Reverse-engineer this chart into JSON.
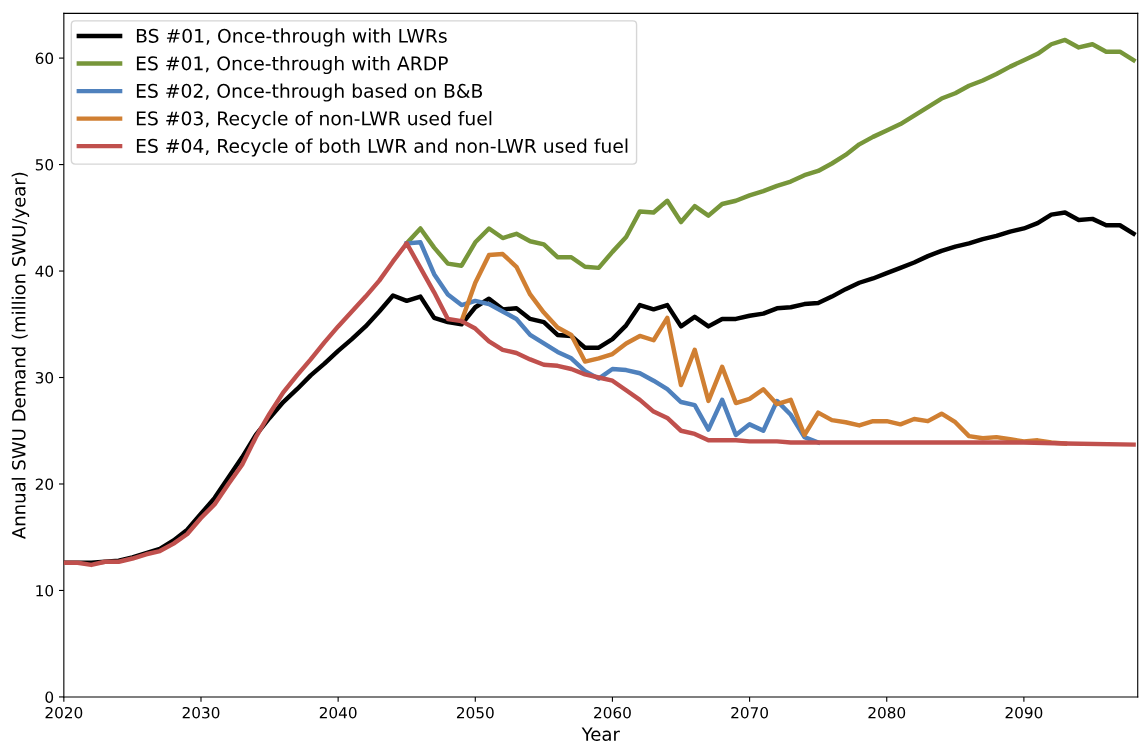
{
  "chart_data": {
    "type": "line",
    "xlabel": "Year",
    "ylabel": "Annual SWU Demand (million SWU/year)",
    "xlim": [
      2020,
      2098.3
    ],
    "xticks": [
      2020,
      2030,
      2040,
      2050,
      2060,
      2070,
      2080,
      2090
    ],
    "ylim": [
      0,
      64.2
    ],
    "yticks": [
      0,
      10,
      20,
      30,
      40,
      50,
      60
    ],
    "grid": false,
    "legend": "top left",
    "marker": "none",
    "line_style": "solid",
    "series": [
      {
        "name": "BS #01, Once-through with LWRs",
        "color": "#000000",
        "x": [
          2020,
          2021,
          2022,
          2023,
          2024,
          2025,
          2026,
          2027,
          2028,
          2029,
          2030,
          2031,
          2032,
          2033,
          2034,
          2035,
          2036,
          2037,
          2038,
          2039,
          2040,
          2041,
          2042,
          2043,
          2044,
          2045,
          2046,
          2047,
          2048,
          2049,
          2050,
          2051,
          2052,
          2053,
          2054,
          2055,
          2056,
          2057,
          2058,
          2059,
          2060,
          2061,
          2062,
          2063,
          2064,
          2065,
          2066,
          2067,
          2068,
          2069,
          2070,
          2071,
          2072,
          2073,
          2074,
          2075,
          2076,
          2077,
          2078,
          2079,
          2080,
          2081,
          2082,
          2083,
          2084,
          2085,
          2086,
          2087,
          2088,
          2089,
          2090,
          2091,
          2092,
          2093,
          2094,
          2095,
          2096,
          2097,
          2098
        ],
        "values": [
          12.6,
          12.6,
          12.6,
          12.7,
          12.8,
          13.1,
          13.5,
          13.9,
          14.7,
          15.7,
          17.2,
          18.7,
          20.6,
          22.5,
          24.6,
          26.2,
          27.7,
          28.9,
          30.2,
          31.3,
          32.5,
          33.6,
          34.8,
          36.2,
          37.7,
          37.2,
          37.6,
          35.6,
          35.2,
          35.0,
          36.6,
          37.4,
          36.4,
          36.5,
          35.5,
          35.2,
          34.0,
          33.9,
          32.8,
          32.8,
          33.6,
          34.9,
          36.8,
          36.4,
          36.8,
          34.8,
          35.7,
          34.8,
          35.5,
          35.5,
          35.8,
          36.0,
          36.5,
          36.6,
          36.9,
          37.0,
          37.6,
          38.3,
          38.9,
          39.3,
          39.8,
          40.3,
          40.8,
          41.4,
          41.9,
          42.3,
          42.6,
          43.0,
          43.3,
          43.7,
          44.0,
          44.5,
          45.3,
          45.5,
          44.8,
          44.9,
          44.3,
          44.3,
          43.5
        ]
      },
      {
        "name": "ES #01, Once-through with ARDP",
        "color": "#77963a",
        "x": [
          2045,
          2046,
          2047,
          2048,
          2049,
          2050,
          2051,
          2052,
          2053,
          2054,
          2055,
          2056,
          2057,
          2058,
          2059,
          2060,
          2061,
          2062,
          2063,
          2064,
          2065,
          2066,
          2067,
          2068,
          2069,
          2070,
          2071,
          2072,
          2073,
          2074,
          2075,
          2076,
          2077,
          2078,
          2079,
          2080,
          2081,
          2082,
          2083,
          2084,
          2085,
          2086,
          2087,
          2088,
          2089,
          2090,
          2091,
          2092,
          2093,
          2094,
          2095,
          2096,
          2097,
          2098
        ],
        "values": [
          42.6,
          44.0,
          42.2,
          40.7,
          40.5,
          42.7,
          44.0,
          43.1,
          43.5,
          42.8,
          42.5,
          41.3,
          41.3,
          40.4,
          40.3,
          41.8,
          43.2,
          45.6,
          45.5,
          46.6,
          44.6,
          46.1,
          45.2,
          46.3,
          46.6,
          47.1,
          47.5,
          48.0,
          48.4,
          49.0,
          49.4,
          50.1,
          50.9,
          51.9,
          52.6,
          53.2,
          53.8,
          54.6,
          55.4,
          56.2,
          56.7,
          57.4,
          57.9,
          58.5,
          59.2,
          59.8,
          60.4,
          61.3,
          61.7,
          61.0,
          61.3,
          60.6,
          60.6,
          59.8
        ]
      },
      {
        "name": "ES #02, Once-through based on B&B",
        "color": "#4f81bd",
        "x": [
          2045,
          2046,
          2047,
          2048,
          2049,
          2050,
          2051,
          2052,
          2053,
          2054,
          2055,
          2056,
          2057,
          2058,
          2059,
          2060,
          2061,
          2062,
          2063,
          2064,
          2065,
          2066,
          2067,
          2068,
          2069,
          2070,
          2071,
          2072,
          2073,
          2074,
          2075
        ],
        "values": [
          42.6,
          42.7,
          39.7,
          37.8,
          36.8,
          37.2,
          36.9,
          36.2,
          35.5,
          34.0,
          33.2,
          32.4,
          31.8,
          30.6,
          29.9,
          30.8,
          30.7,
          30.4,
          29.7,
          28.9,
          27.7,
          27.4,
          25.1,
          27.9,
          24.6,
          25.6,
          25.0,
          27.8,
          26.5,
          24.4,
          23.9
        ]
      },
      {
        "name": "ES #03, Recycle of non-LWR used fuel",
        "color": "#d07f32",
        "x": [
          2049,
          2050,
          2051,
          2052,
          2053,
          2054,
          2055,
          2056,
          2057,
          2058,
          2059,
          2060,
          2061,
          2062,
          2063,
          2064,
          2065,
          2066,
          2067,
          2068,
          2069,
          2070,
          2071,
          2072,
          2073,
          2074,
          2075,
          2076,
          2077,
          2078,
          2079,
          2080,
          2081,
          2082,
          2083,
          2084,
          2085,
          2086,
          2087,
          2088,
          2089,
          2090,
          2091,
          2092,
          2093
        ],
        "values": [
          35.3,
          38.9,
          41.5,
          41.6,
          40.4,
          37.8,
          36.1,
          34.7,
          34.0,
          31.5,
          31.8,
          32.2,
          33.2,
          33.9,
          33.5,
          35.6,
          29.3,
          32.6,
          27.8,
          31.0,
          27.6,
          28.0,
          28.9,
          27.5,
          27.9,
          24.6,
          26.7,
          26.0,
          25.8,
          25.5,
          25.9,
          25.9,
          25.6,
          26.1,
          25.9,
          26.6,
          25.8,
          24.5,
          24.3,
          24.4,
          24.2,
          24.0,
          24.1,
          23.9,
          23.8
        ]
      },
      {
        "name": "ES #04, Recycle of both LWR and non-LWR used fuel",
        "color": "#c0504d",
        "x": [
          2020,
          2021,
          2022,
          2023,
          2024,
          2025,
          2026,
          2027,
          2028,
          2029,
          2030,
          2031,
          2032,
          2033,
          2034,
          2035,
          2036,
          2037,
          2038,
          2039,
          2040,
          2041,
          2042,
          2043,
          2044,
          2045,
          2046,
          2047,
          2048,
          2049,
          2050,
          2051,
          2052,
          2053,
          2054,
          2055,
          2056,
          2057,
          2058,
          2059,
          2060,
          2061,
          2062,
          2063,
          2064,
          2065,
          2066,
          2067,
          2068,
          2069,
          2070,
          2071,
          2072,
          2073,
          2074,
          2075,
          2080,
          2085,
          2090,
          2093,
          2098
        ],
        "values": [
          12.6,
          12.6,
          12.4,
          12.7,
          12.7,
          13.0,
          13.4,
          13.7,
          14.4,
          15.3,
          16.8,
          18.1,
          20.0,
          21.8,
          24.4,
          26.6,
          28.6,
          30.2,
          31.7,
          33.3,
          34.8,
          36.2,
          37.6,
          39.1,
          40.9,
          42.6,
          40.3,
          38.0,
          35.5,
          35.3,
          34.6,
          33.4,
          32.6,
          32.3,
          31.7,
          31.2,
          31.1,
          30.8,
          30.3,
          30.0,
          29.7,
          28.8,
          27.9,
          26.8,
          26.2,
          25.0,
          24.7,
          24.1,
          24.1,
          24.1,
          24.0,
          24.0,
          24.0,
          23.9,
          23.9,
          23.9,
          23.9,
          23.9,
          23.9,
          23.8,
          23.7
        ]
      }
    ]
  }
}
